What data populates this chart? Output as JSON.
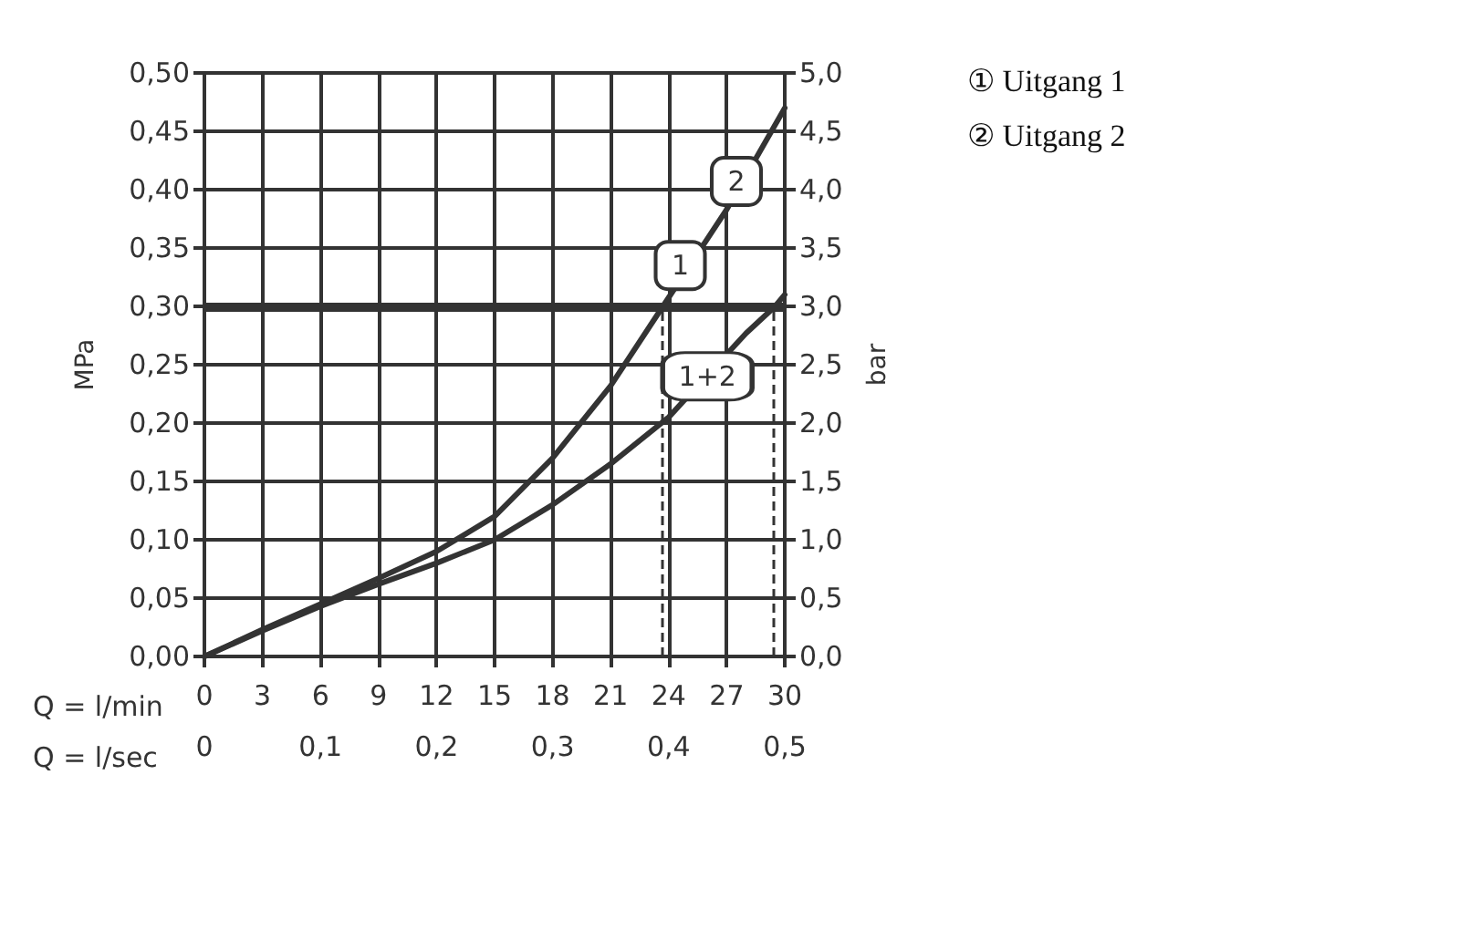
{
  "chart_data": {
    "type": "line",
    "xlabel": "Q = l/min",
    "x2label": "Q = l/sec",
    "ylabel": "MPa",
    "y2label": "bar",
    "xlim": [
      0,
      30
    ],
    "xticks": [
      0,
      3,
      6,
      9,
      12,
      15,
      18,
      21,
      24,
      27,
      30
    ],
    "x2lim": [
      0,
      0.5
    ],
    "x2ticks": [
      0,
      {
        "value": 0.1,
        "label": "0,1"
      },
      {
        "value": 0.2,
        "label": "0,2"
      },
      {
        "value": 0.3,
        "label": "0,3"
      },
      {
        "value": 0.4,
        "label": "0,4"
      },
      {
        "value": 0.5,
        "label": "0,5"
      }
    ],
    "ylim": [
      0,
      0.5
    ],
    "yticks": [
      {
        "value": 0,
        "label": "0,00"
      },
      {
        "value": 0.05,
        "label": "0,05"
      },
      {
        "value": 0.1,
        "label": "0,10"
      },
      {
        "value": 0.15,
        "label": "0,15"
      },
      {
        "value": 0.2,
        "label": "0,20"
      },
      {
        "value": 0.25,
        "label": "0,25"
      },
      {
        "value": 0.3,
        "label": "0,30"
      },
      {
        "value": 0.35,
        "label": "0,35"
      },
      {
        "value": 0.4,
        "label": "0,40"
      },
      {
        "value": 0.45,
        "label": "0,45"
      },
      {
        "value": 0.5,
        "label": "0,50"
      }
    ],
    "y2lim": [
      0,
      5
    ],
    "y2ticks": [
      {
        "value": 0,
        "label": "0,0"
      },
      {
        "value": 0.5,
        "label": "0,5"
      },
      {
        "value": 1,
        "label": "1,0"
      },
      {
        "value": 1.5,
        "label": "1,5"
      },
      {
        "value": 2,
        "label": "2,0"
      },
      {
        "value": 2.5,
        "label": "2,5"
      },
      {
        "value": 3,
        "label": "3,0"
      },
      {
        "value": 3.5,
        "label": "3,5"
      },
      {
        "value": 4,
        "label": "4,0"
      },
      {
        "value": 4.5,
        "label": "4,5"
      },
      {
        "value": 5,
        "label": "5,0"
      }
    ],
    "series": [
      {
        "color": "#333333",
        "x": [
          0,
          3,
          6,
          9,
          12,
          15,
          18,
          21,
          23.7,
          27,
          30
        ],
        "values": [
          0,
          0.023,
          0.045,
          0.067,
          0.09,
          0.12,
          0.17,
          0.232,
          0.3,
          0.383,
          0.47
        ]
      },
      {
        "color": "#333333",
        "x": [
          0,
          3,
          6,
          9,
          12,
          15,
          18,
          21,
          24,
          28,
          29.5,
          30
        ],
        "values": [
          0,
          0.022,
          0.043,
          0.062,
          0.08,
          0.1,
          0.13,
          0.165,
          0.205,
          0.277,
          0.3,
          0.31
        ]
      }
    ],
    "ref_lines": [
      {
        "axis": "y",
        "value": 0.3,
        "color": "#333333",
        "line_style": "solid"
      },
      {
        "axis": "x",
        "value": 23.7,
        "color": "#333333",
        "line_style": "dashed"
      },
      {
        "axis": "x",
        "value": 29.4,
        "color": "#333333",
        "line_style": "dashed"
      }
    ],
    "annotations": [
      {
        "text": "1",
        "x": 24.6,
        "y": 0.335
      },
      {
        "text": "2",
        "x": 27.5,
        "y": 0.407
      },
      {
        "text": "1+2",
        "x": 26,
        "y": 0.24
      },
      "① Uitgang 1",
      "② Uitgang 2"
    ],
    "grid": true,
    "marker": "none",
    "line_style": "solid"
  }
}
